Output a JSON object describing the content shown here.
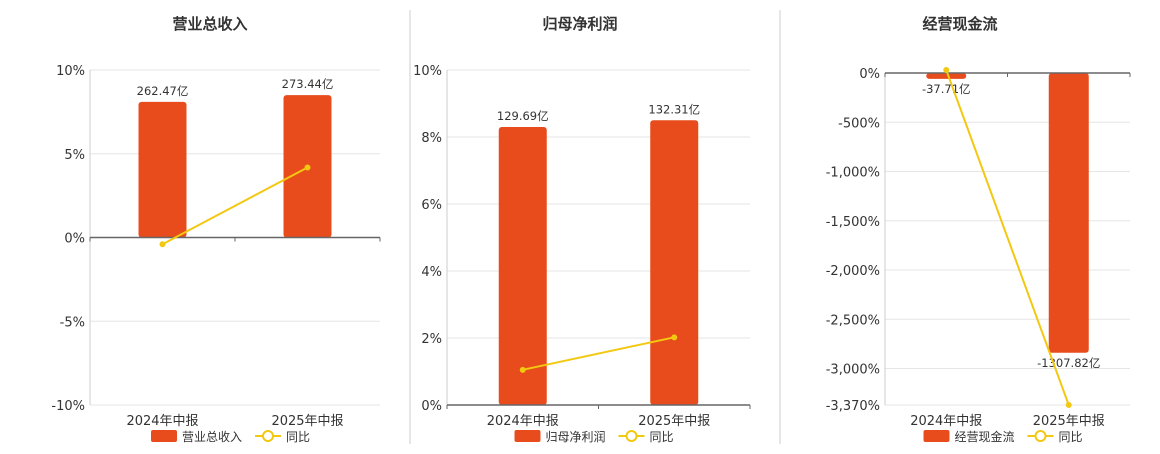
{
  "colors": {
    "bar": "#E84C1C",
    "line": "#F2C811",
    "grid": "#E6E6E6",
    "axis": "#666666",
    "divider": "#CCCCCC"
  },
  "chart_data": [
    {
      "type": "bar",
      "title": "营业总收入",
      "categories": [
        "2024年中报",
        "2025年中报"
      ],
      "bar_values": [
        8.1,
        8.5
      ],
      "data_labels": [
        "262.47亿",
        "273.44亿"
      ],
      "yoy_values": [
        -0.4,
        4.18
      ],
      "yticks": [
        10,
        5,
        0,
        -5,
        -10
      ],
      "ytick_labels": [
        "10%",
        "5%",
        "0%",
        "-5%",
        "-10%"
      ],
      "ylim": [
        -10,
        10
      ],
      "legend": [
        "营业总收入",
        "同比"
      ]
    },
    {
      "type": "bar",
      "title": "归母净利润",
      "categories": [
        "2024年中报",
        "2025年中报"
      ],
      "bar_values": [
        8.3,
        8.5
      ],
      "data_labels": [
        "129.69亿",
        "132.31亿"
      ],
      "yoy_values": [
        1.05,
        2.02
      ],
      "yticks": [
        10,
        8,
        6,
        4,
        2,
        0
      ],
      "ytick_labels": [
        "10%",
        "8%",
        "6%",
        "4%",
        "2%",
        "0%"
      ],
      "ylim": [
        0,
        10
      ],
      "legend": [
        "归母净利润",
        "同比"
      ]
    },
    {
      "type": "bar",
      "title": "经营现金流",
      "categories": [
        "2024年中报",
        "2025年中报"
      ],
      "bar_values": [
        -60,
        -2840
      ],
      "data_labels": [
        "-37.71亿",
        "-1307.82亿"
      ],
      "yoy_values": [
        30,
        -3370
      ],
      "yticks": [
        0,
        -500,
        -1000,
        -1500,
        -2000,
        -2500,
        -3000,
        -3370
      ],
      "ytick_labels": [
        "0%",
        "-500%",
        "-1,000%",
        "-1,500%",
        "-2,000%",
        "-2,500%",
        "-3,000%",
        "-3,370%"
      ],
      "ylim": [
        -3370,
        0
      ],
      "legend": [
        "经营现金流",
        "同比"
      ]
    }
  ]
}
